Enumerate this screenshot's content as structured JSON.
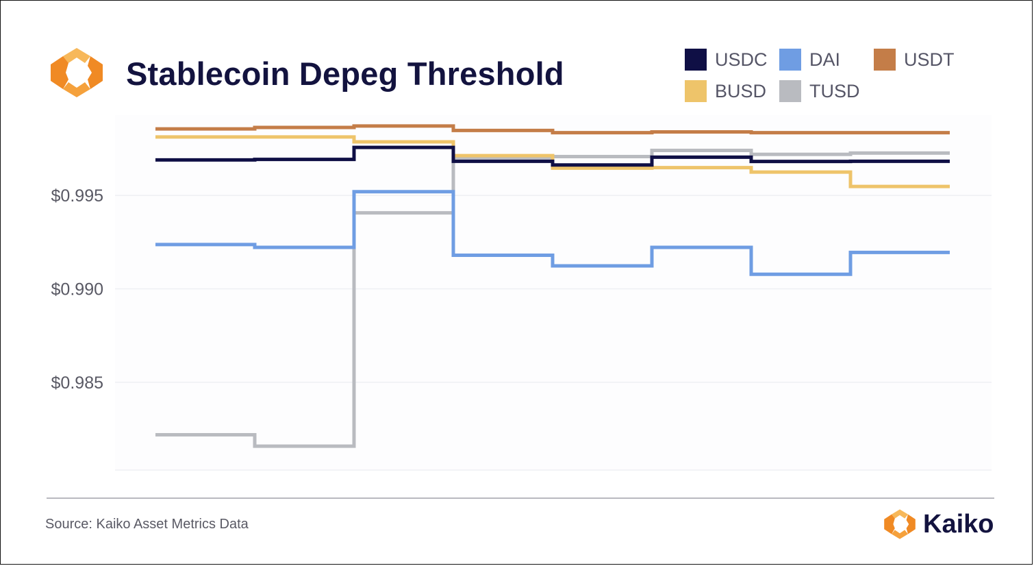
{
  "header": {
    "title": "Stablecoin Depeg Threshold"
  },
  "colors": {
    "USDC": "#0f0f45",
    "DAI": "#6f9de3",
    "USDT": "#c47d48",
    "BUSD": "#eec46a",
    "TUSD": "#b9bbc0",
    "grid": "#eef0f3",
    "axis_text": "#595964",
    "title": "#13133f",
    "logo_orange": "#f08a24",
    "logo_light": "#f7b85a"
  },
  "legend": {
    "items": [
      {
        "label": "USDC",
        "color": "#0f0f45",
        "icon": "legend-swatch-square"
      },
      {
        "label": "DAI",
        "color": "#6f9de3",
        "icon": "legend-swatch-square"
      },
      {
        "label": "USDT",
        "color": "#c47d48",
        "icon": "legend-swatch-square"
      },
      {
        "label": "BUSD",
        "color": "#eec46a",
        "icon": "legend-swatch-square"
      },
      {
        "label": "TUSD",
        "color": "#b9bbc0",
        "icon": "legend-swatch-square"
      }
    ]
  },
  "chart_data": {
    "type": "line",
    "step": true,
    "title": "Stablecoin Depeg Threshold",
    "xlabel": "",
    "ylabel": "",
    "x_labels_shown": false,
    "ylim": [
      0.9803,
      0.9993
    ],
    "yticks": [
      0.985,
      0.99,
      0.995
    ],
    "ytick_labels": [
      "$0.985",
      "$0.990",
      "$0.995"
    ],
    "grid": true,
    "legend_position": "top-right",
    "x": [
      1,
      2,
      3,
      4,
      5,
      6,
      7,
      8,
      9
    ],
    "series": [
      {
        "name": "USDC",
        "color": "#0f0f45",
        "values": [
          0.9969,
          0.99693,
          0.99757,
          0.99683,
          0.99663,
          0.99705,
          0.99682,
          0.99683,
          0.99683
        ]
      },
      {
        "name": "DAI",
        "color": "#6f9de3",
        "values": [
          0.99237,
          0.99222,
          0.9952,
          0.9918,
          0.99123,
          0.99222,
          0.99078,
          0.99195,
          0.99195
        ]
      },
      {
        "name": "USDT",
        "color": "#c47d48",
        "values": [
          0.99856,
          0.99864,
          0.99872,
          0.99848,
          0.99836,
          0.9984,
          0.99836,
          0.99836,
          0.99836
        ]
      },
      {
        "name": "BUSD",
        "color": "#eec46a",
        "values": [
          0.99813,
          0.99813,
          0.99787,
          0.99713,
          0.99646,
          0.99649,
          0.99625,
          0.99548,
          0.99548
        ]
      },
      {
        "name": "TUSD",
        "color": "#b9bbc0",
        "values": [
          0.98219,
          0.98158,
          0.99407,
          0.99702,
          0.99708,
          0.99741,
          0.9972,
          0.99727,
          0.99727
        ]
      }
    ]
  },
  "footer": {
    "source": "Source: Kaiko Asset Metrics Data",
    "brand": "Kaiko"
  }
}
